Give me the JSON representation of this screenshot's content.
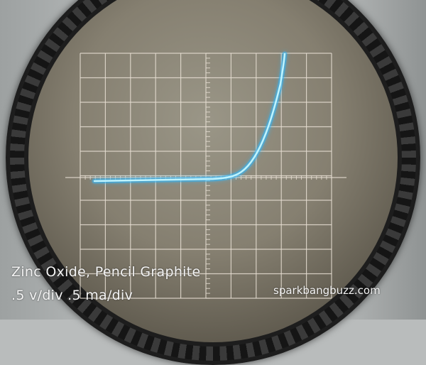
{
  "caption": {
    "line1": "Zinc Oxide, Pencil Graphite",
    "line2": ".5 v/div .5 ma/div"
  },
  "watermark": {
    "text": "sparkbangbuzz.com"
  },
  "colors": {
    "trace": "#7fe8ff",
    "trace_glow": "#2fb8ff",
    "grid": "#e6ded2",
    "text": "#f4f4f4"
  }
}
